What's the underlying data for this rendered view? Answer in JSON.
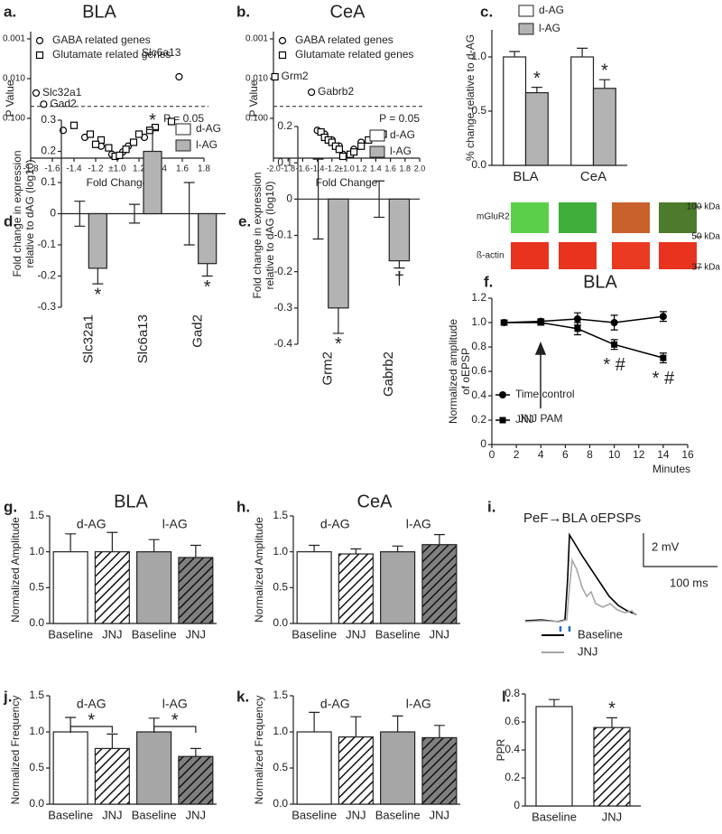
{
  "chart_data": [
    {
      "type": "scatter",
      "panel_label": "a.",
      "title": "BLA",
      "xlabel": "Fold Change",
      "ylabel": "P Value",
      "yscale": "log",
      "yreverse": true,
      "xscale": "fold",
      "xlim": [
        -1.8,
        1.8
      ],
      "xticks": [
        -1.8,
        -1.6,
        -1.4,
        -1.2,
        {
          "value": 1,
          "label": "±1.0"
        },
        1.2,
        1.4,
        1.6,
        1.8
      ],
      "ylim": [
        0.001,
        1
      ],
      "yticks": [
        0.001,
        {
          "value": 0.01,
          "label": "0.010"
        },
        {
          "value": 0.1,
          "label": "0.100"
        }
      ],
      "threshold": {
        "value": 0.05,
        "label": "P = 0.05"
      },
      "legend": "upper left",
      "series": [
        {
          "name": "GABA related genes",
          "marker": "circle",
          "color": "#000000",
          "x": [
            1.57,
            -1.75,
            -1.68,
            -1.5,
            -1.3,
            -1.15,
            1.1,
            1.25,
            1.05,
            -1.05
          ],
          "values": [
            0.009,
            0.023,
            0.044,
            0.2,
            0.3,
            0.5,
            0.5,
            0.3,
            0.7,
            0.8
          ],
          "labels": [
            "Slc6a13",
            "Slc32a1",
            "Gad2",
            null,
            null,
            null,
            null,
            null,
            null,
            null
          ]
        },
        {
          "name": "Glutamate related genes",
          "marker": "square",
          "color": "#000000",
          "x": [
            1.5,
            1.35,
            -1.4,
            -1.25,
            1.2,
            -1.15,
            1.15,
            -1.08,
            1.08,
            -1.02,
            1.02,
            1.3,
            -1.2
          ],
          "values": [
            0.12,
            0.17,
            0.15,
            0.25,
            0.25,
            0.35,
            0.4,
            0.55,
            0.6,
            0.9,
            0.85,
            0.2,
            0.45
          ]
        }
      ]
    },
    {
      "type": "scatter",
      "panel_label": "b.",
      "title": "CeA",
      "xlabel": "Fold Change",
      "ylabel": "P Value",
      "yscale": "log",
      "yreverse": true,
      "xscale": "fold",
      "xlim": [
        -2,
        2
      ],
      "xticks": [
        {
          "value": -2,
          "label": "-2.0"
        },
        -1.8,
        -1.6,
        -1.4,
        -1.2,
        {
          "value": 1,
          "label": "±1.0"
        },
        1.2,
        1.4,
        1.6,
        1.8,
        {
          "value": 2,
          "label": "2.0"
        }
      ],
      "ylim": [
        0.001,
        1
      ],
      "yticks": [
        0.001,
        {
          "value": 0.01,
          "label": "0.010"
        },
        {
          "value": 0.1,
          "label": "0.100"
        }
      ],
      "threshold": {
        "value": 0.05,
        "label": "P = 0.05"
      },
      "legend": "upper left",
      "series": [
        {
          "name": "GABA related genes",
          "marker": "circle",
          "color": "#000000",
          "x": [
            -1.48,
            -1.4,
            -1.3,
            -1.2,
            -1.1,
            1.1,
            -1.05,
            1.2
          ],
          "values": [
            0.022,
            0.2,
            0.25,
            0.35,
            0.5,
            0.6,
            0.8,
            0.4
          ],
          "labels": [
            "Gabrb2",
            null,
            null,
            null,
            null,
            null,
            null,
            null
          ]
        },
        {
          "name": "Glutamate related genes",
          "marker": "square",
          "color": "#000000",
          "x": [
            -1.98,
            -1.35,
            -1.3,
            -1.25,
            -1.2,
            -1.15,
            -1.1,
            1.05,
            1.1,
            1.2,
            1.3,
            1.4,
            1.5,
            -1.05
          ],
          "values": [
            0.009,
            0.22,
            0.3,
            0.35,
            0.4,
            0.5,
            0.6,
            0.8,
            0.7,
            0.5,
            0.35,
            0.3,
            0.25,
            0.9
          ],
          "labels": [
            "Grm2",
            null,
            null,
            null,
            null,
            null,
            null,
            null,
            null,
            null,
            null,
            null,
            null,
            null
          ]
        }
      ]
    },
    {
      "type": "bar",
      "panel_label": "c.",
      "ylabel": "% change relative to d-AG",
      "categories": [
        "BLA",
        "CeA"
      ],
      "ylim": [
        0,
        1.25
      ],
      "yticks": [
        {
          "value": 0,
          "label": "0.0"
        },
        0.5,
        {
          "value": 1,
          "label": "1.0"
        }
      ],
      "legend": "above",
      "series": [
        {
          "name": "d-AG",
          "color": "#ffffff",
          "values": [
            1,
            1
          ],
          "errors": [
            0.05,
            0.08
          ]
        },
        {
          "name": "l-AG",
          "color": "#b3b3b3",
          "values": [
            0.67,
            0.71
          ],
          "errors": [
            0.05,
            0.08
          ],
          "marks": [
            "*",
            "*"
          ]
        }
      ]
    },
    {
      "type": "bar",
      "panel_label": "d.",
      "ylabel": [
        "Fold change in expression",
        "relative to dAG (log10)"
      ],
      "categories": [
        "Slc32a1",
        "Slc6a13",
        "Gad2"
      ],
      "xtick_rotation": 90,
      "ylim": [
        -0.3,
        0.3
      ],
      "yticks": [
        -0.3,
        -0.2,
        -0.1,
        0,
        0.1,
        0.2,
        0.3
      ],
      "legend": "upper right",
      "series": [
        {
          "name": "d-AG",
          "color": "#ffffff",
          "values": [
            0,
            0,
            0
          ],
          "errors": [
            0.04,
            0.03,
            0.1
          ]
        },
        {
          "name": "l-AG",
          "color": "#b3b3b3",
          "values": [
            -0.175,
            0.2,
            -0.16
          ],
          "errors": [
            0.05,
            0.07,
            0.04
          ],
          "marks": [
            "*",
            "*",
            "*"
          ]
        }
      ]
    },
    {
      "type": "bar",
      "panel_label": "e.",
      "ylabel": [
        "Fold change in expression",
        "relative to dAG (log10)"
      ],
      "categories": [
        "Grm2",
        "Gabrb2"
      ],
      "xtick_rotation": 90,
      "ylim": [
        -0.4,
        0.2
      ],
      "yticks": [
        -0.4,
        -0.3,
        -0.2,
        -0.1,
        0,
        0.1,
        0.2
      ],
      "legend": "upper right",
      "series": [
        {
          "name": "d-AG",
          "color": "#ffffff",
          "values": [
            0,
            0
          ],
          "errors": [
            0.11,
            0.05
          ]
        },
        {
          "name": "l-AG",
          "color": "#b3b3b3",
          "values": [
            -0.3,
            -0.17
          ],
          "errors": [
            0.07,
            0.02
          ],
          "marks": [
            "*",
            "†"
          ]
        }
      ]
    },
    {
      "type": "line",
      "panel_label": "f.",
      "title": "BLA",
      "xlabel": "Minutes",
      "ylabel": [
        "Normalized amplitude",
        "of oEPSP"
      ],
      "annotation": "JNJ PAM",
      "xlim": [
        0,
        16
      ],
      "xticks": [
        0,
        2,
        4,
        6,
        8,
        10,
        12,
        14,
        16
      ],
      "ylim": [
        0,
        1.2
      ],
      "yticks": [
        0,
        0.2,
        0.4,
        0.6,
        0.8,
        {
          "value": 1,
          "label": "1.0"
        },
        1.2
      ],
      "legend": "lower left",
      "series": [
        {
          "name": "Time control",
          "marker": "circle",
          "color": "#000000",
          "x": [
            1,
            4,
            7,
            10,
            14
          ],
          "values": [
            1,
            1.01,
            1.03,
            1,
            1.05
          ],
          "errors": [
            0.02,
            0.02,
            0.05,
            0.06,
            0.04
          ]
        },
        {
          "name": "JNJ",
          "marker": "square",
          "color": "#000000",
          "x": [
            1,
            4,
            7,
            10,
            14
          ],
          "values": [
            1,
            1,
            0.95,
            0.82,
            0.71
          ],
          "errors": [
            0.02,
            0.02,
            0.05,
            0.04,
            0.04
          ],
          "marks": [
            null,
            null,
            null,
            "* #",
            "* #"
          ]
        }
      ]
    },
    {
      "type": "bar",
      "panel_label": "g.",
      "title": "BLA",
      "ylabel": "Normalized Amplitude",
      "categories": [
        "Baseline",
        "JNJ",
        "Baseline",
        "JNJ"
      ],
      "groups": [
        "d-AG",
        "l-AG"
      ],
      "values": [
        1,
        1,
        1,
        0.92
      ],
      "errors": [
        0.25,
        0.27,
        0.17,
        0.17
      ],
      "colors": [
        "#ffffff",
        "#ffffff",
        "#a6a6a6",
        "#808080"
      ],
      "hatch": [
        false,
        true,
        false,
        true
      ],
      "ylim": [
        0,
        1.5
      ],
      "yticks": [
        {
          "value": 0,
          "label": "0.0"
        },
        0.5,
        {
          "value": 1,
          "label": "1.0"
        },
        1.5
      ]
    },
    {
      "type": "bar",
      "panel_label": "h.",
      "title": "CeA",
      "ylabel": "Normalized Amplitude",
      "categories": [
        "Baseline",
        "JNJ",
        "Baseline",
        "JNJ"
      ],
      "groups": [
        "d-AG",
        "l-AG"
      ],
      "values": [
        1,
        0.97,
        1,
        1.1
      ],
      "errors": [
        0.09,
        0.07,
        0.08,
        0.14
      ],
      "colors": [
        "#ffffff",
        "#ffffff",
        "#a6a6a6",
        "#808080"
      ],
      "hatch": [
        false,
        true,
        false,
        true
      ],
      "ylim": [
        0,
        1.5
      ],
      "yticks": [
        {
          "value": 0,
          "label": "0.0"
        },
        0.5,
        {
          "value": 1,
          "label": "1.0"
        },
        1.5
      ]
    },
    {
      "type": "bar",
      "panel_label": "j.",
      "ylabel": "Normalized Frequency",
      "categories": [
        "Baseline",
        "JNJ",
        "Baseline",
        "JNJ"
      ],
      "groups": [
        "d-AG",
        "l-AG"
      ],
      "group_marks": [
        "*",
        "*"
      ],
      "values": [
        1,
        0.77,
        1,
        0.66
      ],
      "errors": [
        0.2,
        0.2,
        0.19,
        0.11
      ],
      "colors": [
        "#ffffff",
        "#ffffff",
        "#a6a6a6",
        "#808080"
      ],
      "hatch": [
        false,
        true,
        false,
        true
      ],
      "ylim": [
        0,
        1.5
      ],
      "yticks": [
        {
          "value": 0,
          "label": "0.0"
        },
        0.5,
        {
          "value": 1,
          "label": "1.0"
        },
        1.5
      ]
    },
    {
      "type": "bar",
      "panel_label": "k.",
      "ylabel": "Normalized Frequency",
      "categories": [
        "Baseline",
        "JNJ",
        "Baseline",
        "JNJ"
      ],
      "groups": [
        "d-AG",
        "l-AG"
      ],
      "values": [
        1,
        0.93,
        1,
        0.92
      ],
      "errors": [
        0.27,
        0.28,
        0.22,
        0.17
      ],
      "colors": [
        "#ffffff",
        "#ffffff",
        "#a6a6a6",
        "#808080"
      ],
      "hatch": [
        false,
        true,
        false,
        true
      ],
      "ylim": [
        0,
        1.5
      ],
      "yticks": [
        {
          "value": 0,
          "label": "0.0"
        },
        0.5,
        {
          "value": 1,
          "label": "1.0"
        },
        1.5
      ]
    },
    {
      "type": "bar",
      "panel_label": "l.",
      "ylabel": "PPR",
      "categories": [
        "Baseline",
        "JNJ"
      ],
      "values": [
        0.71,
        0.56
      ],
      "errors": [
        0.05,
        0.07
      ],
      "colors": [
        "#ffffff",
        "#ffffff"
      ],
      "hatch": [
        false,
        true
      ],
      "marks": [
        null,
        "*"
      ],
      "ylim": [
        0,
        0.8
      ],
      "yticks": [
        0,
        0.2,
        0.4,
        0.6,
        0.8
      ]
    }
  ],
  "blot": {
    "rows": [
      "mGluR2",
      "ß-actin"
    ],
    "sizes": [
      "100 kDa",
      "50 kDa",
      "37 kDa"
    ]
  },
  "traces": {
    "panel_label": "i.",
    "title": "PeF→BLA oEPSPs",
    "scale_y": "2 mV",
    "scale_x": "100 ms",
    "series": [
      {
        "name": "Baseline",
        "color": "#000000"
      },
      {
        "name": "JNJ",
        "color": "#a6a6a6"
      }
    ]
  }
}
